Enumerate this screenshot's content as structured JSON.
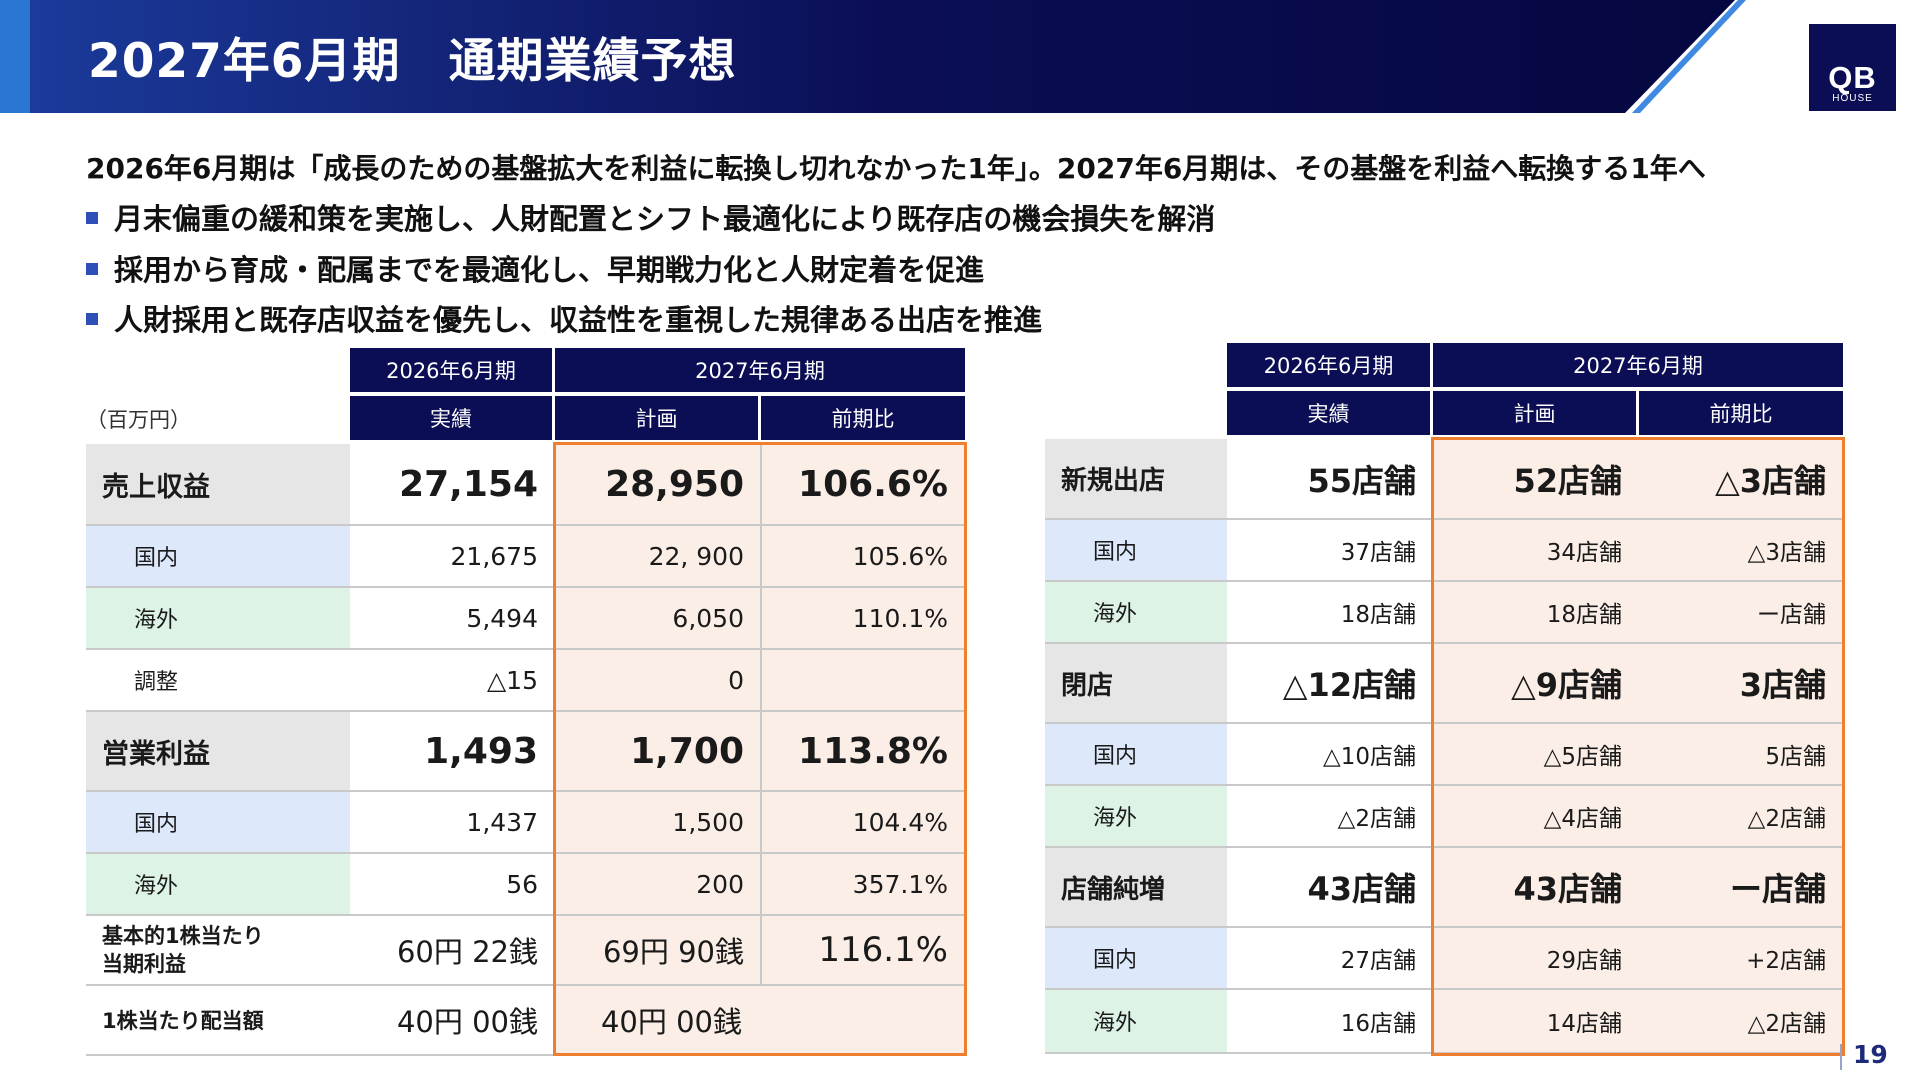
{
  "header": {
    "title": "2027年6月期　通期業績予想",
    "logo": {
      "main": "QB",
      "sub": "HOUSE"
    }
  },
  "intro": "2026年6月期は「成長のための基盤拡大を利益に転換し切れなかった1年」。2027年6月期は、その基盤を利益へ転換する1年へ",
  "bullets": [
    "月末偏重の緩和策を実施し、人財配置とシフト最適化により既存店の機会損失を解消",
    "採用から育成・配属までを最適化し、早期戦力化と人財定着を促進",
    "人財採用と既存店収益を優先し、収益性を重視した規律ある出店を推進"
  ],
  "colors": {
    "navy": "#0b0e55",
    "accent_orange": "#ef7f2f",
    "bullet_blue": "#2f4fb8"
  },
  "left_table": {
    "unit": "（百万円）",
    "headers": {
      "fy2026": "2026年6月期",
      "fy2027": "2027年6月期",
      "actual": "実績",
      "plan": "計画",
      "yoy": "前期比"
    },
    "rows": [
      {
        "label": "売上収益",
        "actual": "27,154",
        "plan": "28,950",
        "yoy": "106.6%"
      },
      {
        "label": "国内",
        "actual": "21,675",
        "plan": "22, 900",
        "yoy": "105.6%"
      },
      {
        "label": "海外",
        "actual": "5,494",
        "plan": "6,050",
        "yoy": "110.1%"
      },
      {
        "label": "調整",
        "actual": "△15",
        "plan": "0",
        "yoy": ""
      },
      {
        "label": "営業利益",
        "actual": "1,493",
        "plan": "1,700",
        "yoy": "113.8%"
      },
      {
        "label": "国内",
        "actual": "1,437",
        "plan": "1,500",
        "yoy": "104.4%"
      },
      {
        "label": "海外",
        "actual": "56",
        "plan": "200",
        "yoy": "357.1%"
      },
      {
        "label_line1": "基本的1株当たり",
        "label_line2": "当期利益",
        "actual": "60円 22銭",
        "plan": "69円 90銭",
        "yoy": "116.1%"
      },
      {
        "label": "1株当たり配当額",
        "actual": "40円 00銭",
        "plan": "40円 00銭",
        "yoy": ""
      }
    ]
  },
  "right_table": {
    "headers": {
      "fy2026": "2026年6月期",
      "fy2027": "2027年6月期",
      "actual": "実績",
      "plan": "計画",
      "yoy": "前期比"
    },
    "rows": [
      {
        "label": "新規出店",
        "actual": "55店舗",
        "plan": "52店舗",
        "yoy": "△3店舗"
      },
      {
        "label": "国内",
        "actual": "37店舗",
        "plan": "34店舗",
        "yoy": "△3店舗"
      },
      {
        "label": "海外",
        "actual": "18店舗",
        "plan": "18店舗",
        "yoy": "ー店舗"
      },
      {
        "label": "閉店",
        "actual": "△12店舗",
        "plan": "△9店舗",
        "yoy": "3店舗"
      },
      {
        "label": "国内",
        "actual": "△10店舗",
        "plan": "△5店舗",
        "yoy": "5店舗"
      },
      {
        "label": "海外",
        "actual": "△2店舗",
        "plan": "△4店舗",
        "yoy": "△2店舗"
      },
      {
        "label": "店舗純増",
        "actual": "43店舗",
        "plan": "43店舗",
        "yoy": "ー店舗"
      },
      {
        "label": "国内",
        "actual": "27店舗",
        "plan": "29店舗",
        "yoy": "+2店舗"
      },
      {
        "label": "海外",
        "actual": "16店舗",
        "plan": "14店舗",
        "yoy": "△2店舗"
      }
    ]
  },
  "page_number": "19"
}
